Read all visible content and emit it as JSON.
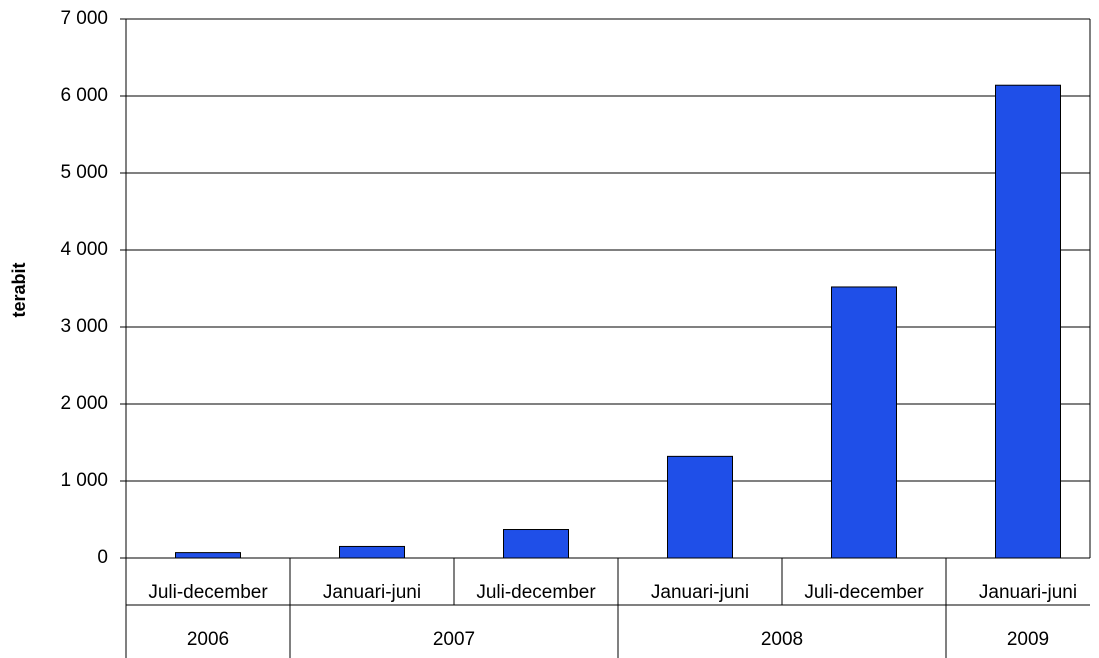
{
  "chart_data": {
    "type": "bar",
    "y_label": "terabit",
    "categories": [
      "Juli-december",
      "Januari-juni",
      "Juli-december",
      "Januari-juni",
      "Juli-december",
      "Januari-juni"
    ],
    "groups": [
      {
        "name": "2006",
        "count": 1
      },
      {
        "name": "2007",
        "count": 2
      },
      {
        "name": "2008",
        "count": 2
      },
      {
        "name": "2009",
        "count": 1
      }
    ],
    "values": [
      70,
      150,
      370,
      1320,
      3520,
      6140
    ],
    "color": "#1f4fe8",
    "ylim": [
      0,
      7000
    ],
    "yticks": [
      0,
      {
        "value": 1000,
        "label": "1 000"
      },
      {
        "value": 2000,
        "label": "2 000"
      },
      {
        "value": 3000,
        "label": "3 000"
      },
      {
        "value": 4000,
        "label": "4 000"
      },
      {
        "value": 5000,
        "label": "5 000"
      },
      {
        "value": 6000,
        "label": "6 000"
      },
      {
        "value": 7000,
        "label": "7 000"
      }
    ],
    "grid": true
  }
}
